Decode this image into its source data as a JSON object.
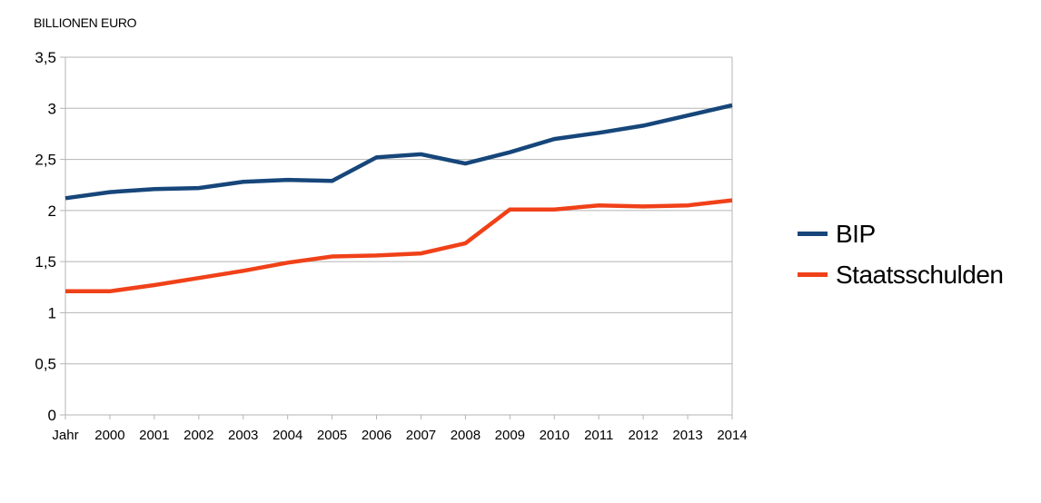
{
  "chart_data": {
    "type": "line",
    "title": "BILLIONEN EURO",
    "categories": [
      "Jahr",
      "2000",
      "2001",
      "2002",
      "2003",
      "2004",
      "2005",
      "2006",
      "2007",
      "2008",
      "2009",
      "2010",
      "2011",
      "2012",
      "2013",
      "2014"
    ],
    "series": [
      {
        "name": "BIP",
        "color": "#16467A",
        "values": [
          2.12,
          2.18,
          2.21,
          2.22,
          2.28,
          2.3,
          2.29,
          2.52,
          2.55,
          2.46,
          2.57,
          2.7,
          2.76,
          2.83,
          2.93,
          3.03
        ]
      },
      {
        "name": "Staatsschulden",
        "color": "#F04119",
        "values": [
          1.21,
          1.21,
          1.27,
          1.34,
          1.41,
          1.49,
          1.55,
          1.56,
          1.58,
          1.68,
          2.01,
          2.01,
          2.05,
          2.04,
          2.05,
          2.1
        ]
      }
    ],
    "ylim": [
      0,
      3.5
    ],
    "ytick_step": 0.5,
    "ytick_labels": [
      "0",
      "0,5",
      "1",
      "1,5",
      "2",
      "2,5",
      "3",
      "3,5"
    ],
    "xlabel": "",
    "ylabel": "BILLIONEN EURO",
    "grid": true,
    "legend_position": "right",
    "colors": {
      "gridline": "#b5b5b5",
      "axis": "#b5b5b5",
      "text": "#000000",
      "background": "#ffffff"
    }
  }
}
